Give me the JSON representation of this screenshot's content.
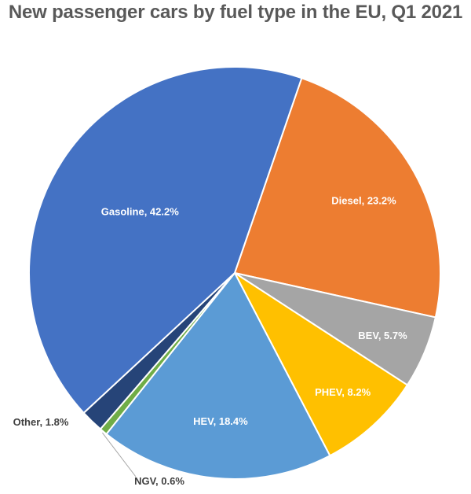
{
  "chart_data": {
    "type": "pie",
    "title": "New passenger cars by fuel type in the EU, Q1 2021",
    "slices": [
      {
        "label": "Diesel, 23.2%",
        "value": 23.2,
        "color": "#ED7D31"
      },
      {
        "label": "BEV, 5.7%",
        "value": 5.7,
        "color": "#A5A5A5"
      },
      {
        "label": "PHEV, 8.2%",
        "value": 8.2,
        "color": "#FFC000"
      },
      {
        "label": "HEV, 18.4%",
        "value": 18.4,
        "color": "#5B9BD5"
      },
      {
        "label": "NGV, 0.6%",
        "value": 0.6,
        "color": "#70AD47"
      },
      {
        "label": "Other, 1.8%",
        "value": 1.8,
        "color": "#264478"
      },
      {
        "label": "Gasoline, 42.2%",
        "value": 42.2,
        "color": "#4472C4"
      }
    ]
  }
}
